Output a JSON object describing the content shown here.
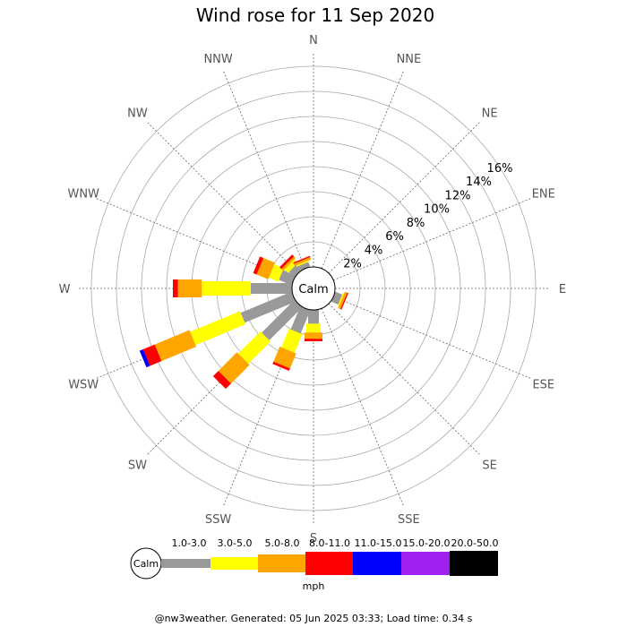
{
  "chart_data": {
    "type": "windrose",
    "title": "Wind rose for 11 Sep 2020",
    "calm_label": "Calm",
    "unit": "mph",
    "directions": [
      "N",
      "NNE",
      "NE",
      "ENE",
      "E",
      "ESE",
      "SE",
      "SSE",
      "S",
      "SSW",
      "SW",
      "WSW",
      "W",
      "WNW",
      "NW",
      "NNW"
    ],
    "radial_ticks": [
      2,
      4,
      6,
      8,
      10,
      12,
      14,
      16
    ],
    "radial_tick_labels": [
      "2%",
      "4%",
      "6%",
      "8%",
      "10%",
      "12%",
      "14%",
      "16%"
    ],
    "rmax": 17,
    "speed_bins": [
      {
        "label": "1.0-3.0",
        "color": "#999999"
      },
      {
        "label": "3.0-5.0",
        "color": "#ffff00"
      },
      {
        "label": "5.0-8.0",
        "color": "#ffa500"
      },
      {
        "label": "8.0-11.0",
        "color": "#ff0000"
      },
      {
        "label": "11.0-15.0",
        "color": "#0000ff"
      },
      {
        "label": "15.0-20.0",
        "color": "#a020f0"
      },
      {
        "label": "20.0-50.0",
        "color": "#000000"
      }
    ],
    "series": [
      {
        "direction": "N",
        "values": [
          0,
          0,
          0,
          0,
          0,
          0,
          0
        ]
      },
      {
        "direction": "NNE",
        "values": [
          0,
          0,
          0,
          0,
          0,
          0,
          0
        ]
      },
      {
        "direction": "NE",
        "values": [
          0,
          0,
          0,
          0,
          0,
          0,
          0
        ]
      },
      {
        "direction": "ENE",
        "values": [
          0,
          0,
          0,
          0,
          0,
          0,
          0
        ]
      },
      {
        "direction": "E",
        "values": [
          0,
          0,
          0,
          0,
          0,
          0,
          0
        ]
      },
      {
        "direction": "ESE",
        "values": [
          0.6,
          0.1,
          0.2,
          0.1,
          0,
          0,
          0
        ]
      },
      {
        "direction": "SE",
        "values": [
          0,
          0,
          0,
          0,
          0,
          0,
          0
        ]
      },
      {
        "direction": "SSE",
        "values": [
          0,
          0,
          0,
          0,
          0,
          0,
          0
        ]
      },
      {
        "direction": "S",
        "values": [
          1.1,
          0.7,
          0.5,
          0.2,
          0,
          0,
          0
        ]
      },
      {
        "direction": "SSW",
        "values": [
          2.0,
          1.6,
          1.3,
          0.2,
          0,
          0,
          0
        ]
      },
      {
        "direction": "SW",
        "values": [
          3.7,
          2.5,
          2.1,
          0.6,
          0,
          0,
          0
        ]
      },
      {
        "direction": "WSW",
        "values": [
          4.4,
          4.3,
          3.0,
          1.0,
          0.3,
          0,
          0
        ]
      },
      {
        "direction": "W",
        "values": [
          3.3,
          3.9,
          1.9,
          0.4,
          0,
          0,
          0
        ]
      },
      {
        "direction": "WNW",
        "values": [
          1.1,
          0.8,
          1.0,
          0.3,
          0,
          0,
          0
        ]
      },
      {
        "direction": "NW",
        "values": [
          0.6,
          0.4,
          0.2,
          0.2,
          0,
          0,
          0
        ]
      },
      {
        "direction": "NNW",
        "values": [
          0.4,
          0.1,
          0.2,
          0.1,
          0,
          0,
          0
        ]
      }
    ],
    "grid": true
  },
  "footer": "@nw3weather. Generated: 05 Jun 2025 03:33; Load time: 0.34 s"
}
